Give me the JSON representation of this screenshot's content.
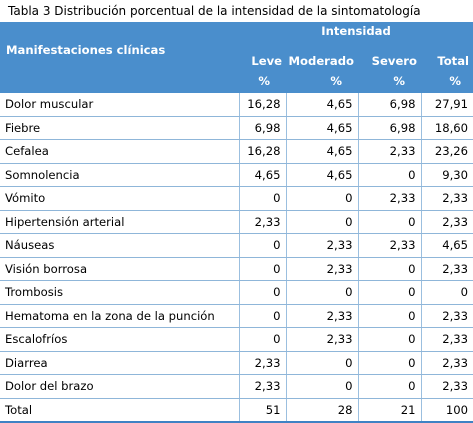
{
  "caption": "Tabla 3 Distribución porcentual de la intensidad de la sintomatología",
  "header": {
    "group_label": "Intensidad",
    "row_label": "Manifestaciones clínicas",
    "columns": [
      {
        "label": "Leve",
        "unit": "%"
      },
      {
        "label": "Moderado",
        "unit": "%"
      },
      {
        "label": "Severo",
        "unit": "%"
      },
      {
        "label": "Total",
        "unit": "%"
      }
    ]
  },
  "rows": [
    {
      "label": "Dolor muscular",
      "values": [
        "16,28",
        "4,65",
        "6,98",
        "27,91"
      ]
    },
    {
      "label": "Fiebre",
      "values": [
        "6,98",
        "4,65",
        "6,98",
        "18,60"
      ]
    },
    {
      "label": "Cefalea",
      "values": [
        "16,28",
        "4,65",
        "2,33",
        "23,26"
      ]
    },
    {
      "label": "Somnolencia",
      "values": [
        "4,65",
        "4,65",
        "0",
        "9,30"
      ]
    },
    {
      "label": "Vómito",
      "values": [
        "0",
        "0",
        "2,33",
        "2,33"
      ]
    },
    {
      "label": "Hipertensión arterial",
      "values": [
        "2,33",
        "0",
        "0",
        "2,33"
      ]
    },
    {
      "label": "Náuseas",
      "values": [
        "0",
        "2,33",
        "2,33",
        "4,65"
      ]
    },
    {
      "label": "Visión borrosa",
      "values": [
        "0",
        "2,33",
        "0",
        "2,33"
      ]
    },
    {
      "label": "Trombosis",
      "values": [
        "0",
        "0",
        "0",
        "0"
      ]
    },
    {
      "label": "Hematoma en la zona de la punción",
      "values": [
        "0",
        "2,33",
        "0",
        "2,33"
      ]
    },
    {
      "label": "Escalofríos",
      "values": [
        "0",
        "2,33",
        "0",
        "2,33"
      ]
    },
    {
      "label": "Diarrea",
      "values": [
        "2,33",
        "0",
        "0",
        "2,33"
      ]
    },
    {
      "label": "Dolor del brazo",
      "values": [
        "2,33",
        "0",
        "0",
        "2,33"
      ]
    },
    {
      "label": "Total",
      "values": [
        "51",
        "28",
        "21",
        "100"
      ]
    }
  ],
  "colors": {
    "header_background": "#4a8ecc",
    "header_text": "#ffffff",
    "row_border": "#8fb6d9",
    "total_border": "#3f82c4"
  }
}
